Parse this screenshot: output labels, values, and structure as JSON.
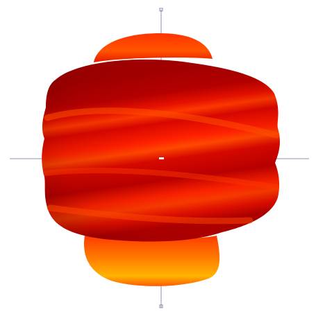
{
  "colors": {
    "background": "#ffffff",
    "axis": "#8a8fa8",
    "center_marker": "#ffffff",
    "surface_dark": "#9e0000",
    "surface_mid": "#e01000",
    "surface_bright": "#ff2a00",
    "surface_highlight": "#ff6a00",
    "surface_warm": "#ff9400",
    "surface_yellow": "#ffcc00"
  },
  "icons": {
    "axis_end_marker": "axis-end-marker-icon"
  }
}
